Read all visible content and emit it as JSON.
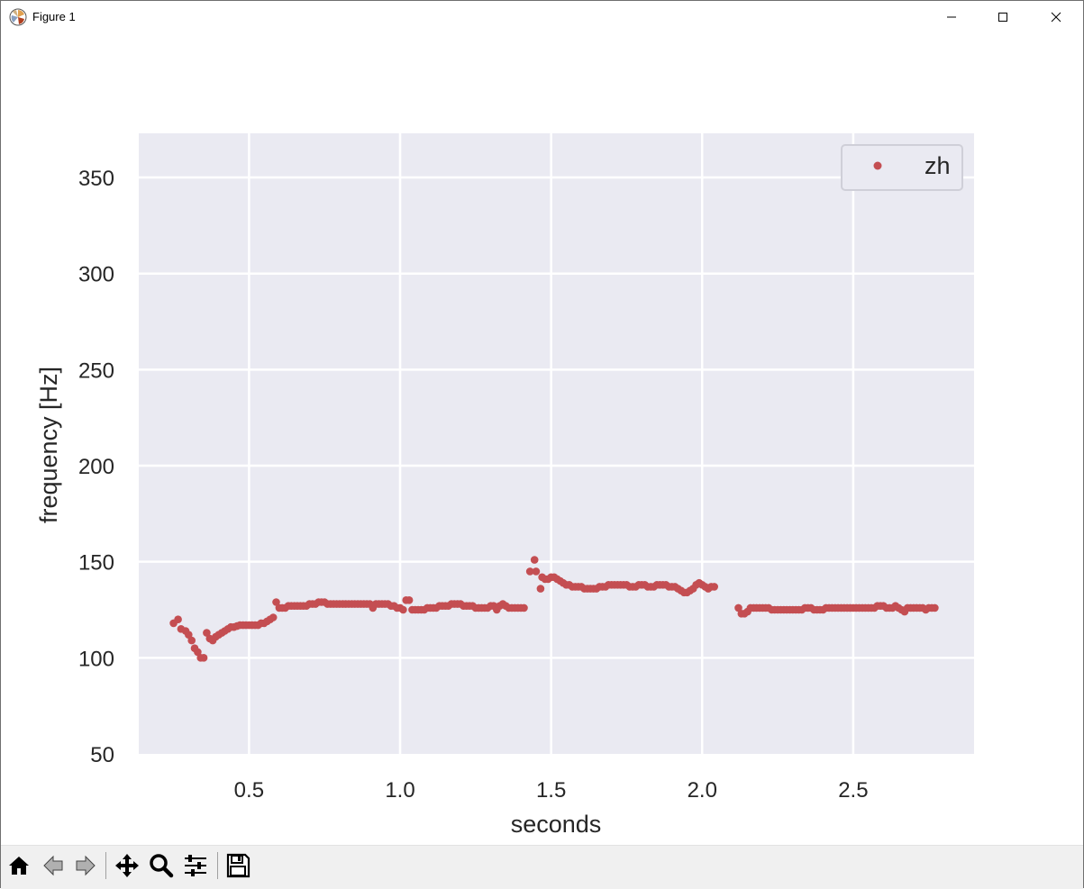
{
  "window": {
    "title": "Figure 1",
    "controls": {
      "minimize": "minimize",
      "maximize": "maximize",
      "close": "close"
    }
  },
  "toolbar": {
    "buttons": [
      {
        "name": "home",
        "icon": "home-icon"
      },
      {
        "name": "back",
        "icon": "back-arrow-icon"
      },
      {
        "name": "forward",
        "icon": "forward-arrow-icon"
      },
      {
        "name": "pan",
        "icon": "move-icon"
      },
      {
        "name": "zoom",
        "icon": "magnifier-icon"
      },
      {
        "name": "configure-subplots",
        "icon": "sliders-icon"
      },
      {
        "name": "save",
        "icon": "floppy-disk-icon"
      }
    ]
  },
  "chart_data": {
    "type": "scatter",
    "title": "",
    "xlabel": "seconds",
    "ylabel": "frequency [Hz]",
    "xlim": [
      0.135,
      2.9
    ],
    "ylim": [
      50,
      373
    ],
    "xticks": [
      0.5,
      1.0,
      1.5,
      2.0,
      2.5
    ],
    "xtick_labels": [
      "0.5",
      "1.0",
      "1.5",
      "2.0",
      "2.5"
    ],
    "yticks": [
      50,
      100,
      150,
      200,
      250,
      300,
      350
    ],
    "ytick_labels": [
      "50",
      "100",
      "150",
      "200",
      "250",
      "300",
      "350"
    ],
    "grid": true,
    "style": "seaborn",
    "background": "#eaeaf2",
    "legend_position": "top-right",
    "series": [
      {
        "name": "zh",
        "color": "#c44e52",
        "points": [
          [
            0.25,
            118
          ],
          [
            0.265,
            120
          ],
          [
            0.275,
            115
          ],
          [
            0.29,
            114
          ],
          [
            0.3,
            112
          ],
          [
            0.31,
            109
          ],
          [
            0.32,
            105
          ],
          [
            0.33,
            103
          ],
          [
            0.34,
            100
          ],
          [
            0.35,
            100
          ],
          [
            0.36,
            113
          ],
          [
            0.37,
            110
          ],
          [
            0.38,
            109
          ],
          [
            0.39,
            111
          ],
          [
            0.4,
            112
          ],
          [
            0.41,
            113
          ],
          [
            0.42,
            114
          ],
          [
            0.43,
            115
          ],
          [
            0.44,
            116
          ],
          [
            0.45,
            116
          ],
          [
            0.46,
            116.5
          ],
          [
            0.47,
            117
          ],
          [
            0.48,
            117
          ],
          [
            0.49,
            117
          ],
          [
            0.5,
            117
          ],
          [
            0.51,
            117
          ],
          [
            0.52,
            117
          ],
          [
            0.53,
            117
          ],
          [
            0.54,
            118
          ],
          [
            0.55,
            118
          ],
          [
            0.56,
            119
          ],
          [
            0.57,
            120
          ],
          [
            0.58,
            121
          ],
          [
            0.59,
            129
          ],
          [
            0.6,
            126
          ],
          [
            0.61,
            126
          ],
          [
            0.62,
            126
          ],
          [
            0.63,
            127
          ],
          [
            0.64,
            127
          ],
          [
            0.65,
            127
          ],
          [
            0.66,
            127
          ],
          [
            0.67,
            127
          ],
          [
            0.68,
            127
          ],
          [
            0.69,
            127
          ],
          [
            0.7,
            128
          ],
          [
            0.71,
            128
          ],
          [
            0.72,
            128
          ],
          [
            0.73,
            129
          ],
          [
            0.74,
            129
          ],
          [
            0.75,
            129
          ],
          [
            0.76,
            128
          ],
          [
            0.77,
            128
          ],
          [
            0.78,
            128
          ],
          [
            0.79,
            128
          ],
          [
            0.8,
            128
          ],
          [
            0.81,
            128
          ],
          [
            0.82,
            128
          ],
          [
            0.83,
            128
          ],
          [
            0.84,
            128
          ],
          [
            0.85,
            128
          ],
          [
            0.86,
            128
          ],
          [
            0.87,
            128
          ],
          [
            0.88,
            128
          ],
          [
            0.89,
            128
          ],
          [
            0.9,
            128
          ],
          [
            0.91,
            126
          ],
          [
            0.92,
            128
          ],
          [
            0.93,
            128
          ],
          [
            0.94,
            128
          ],
          [
            0.95,
            128
          ],
          [
            0.96,
            128
          ],
          [
            0.97,
            127
          ],
          [
            0.98,
            127
          ],
          [
            0.99,
            126
          ],
          [
            1.0,
            126
          ],
          [
            1.01,
            125
          ],
          [
            1.02,
            130
          ],
          [
            1.03,
            130
          ],
          [
            1.04,
            125
          ],
          [
            1.05,
            125
          ],
          [
            1.06,
            125
          ],
          [
            1.07,
            125
          ],
          [
            1.08,
            125
          ],
          [
            1.09,
            126
          ],
          [
            1.1,
            126
          ],
          [
            1.11,
            126
          ],
          [
            1.12,
            126
          ],
          [
            1.13,
            127
          ],
          [
            1.14,
            127
          ],
          [
            1.15,
            127
          ],
          [
            1.16,
            127
          ],
          [
            1.17,
            128
          ],
          [
            1.18,
            128
          ],
          [
            1.19,
            128
          ],
          [
            1.2,
            128
          ],
          [
            1.21,
            127
          ],
          [
            1.22,
            127
          ],
          [
            1.23,
            127
          ],
          [
            1.24,
            127
          ],
          [
            1.25,
            126
          ],
          [
            1.26,
            126
          ],
          [
            1.27,
            126
          ],
          [
            1.28,
            126
          ],
          [
            1.29,
            126
          ],
          [
            1.3,
            127
          ],
          [
            1.31,
            127
          ],
          [
            1.32,
            125
          ],
          [
            1.33,
            127
          ],
          [
            1.34,
            128
          ],
          [
            1.35,
            127
          ],
          [
            1.36,
            126
          ],
          [
            1.37,
            126
          ],
          [
            1.38,
            126
          ],
          [
            1.39,
            126
          ],
          [
            1.4,
            126
          ],
          [
            1.41,
            126
          ],
          [
            1.43,
            145
          ],
          [
            1.445,
            151
          ],
          [
            1.45,
            145
          ],
          [
            1.465,
            136
          ],
          [
            1.47,
            142
          ],
          [
            1.48,
            141
          ],
          [
            1.49,
            141
          ],
          [
            1.5,
            142
          ],
          [
            1.51,
            142
          ],
          [
            1.52,
            141
          ],
          [
            1.53,
            140
          ],
          [
            1.54,
            139
          ],
          [
            1.55,
            138
          ],
          [
            1.56,
            138
          ],
          [
            1.57,
            137
          ],
          [
            1.58,
            137
          ],
          [
            1.59,
            137
          ],
          [
            1.6,
            137
          ],
          [
            1.61,
            136
          ],
          [
            1.62,
            136
          ],
          [
            1.63,
            136
          ],
          [
            1.64,
            136
          ],
          [
            1.65,
            136
          ],
          [
            1.66,
            137
          ],
          [
            1.67,
            137
          ],
          [
            1.68,
            137
          ],
          [
            1.69,
            138
          ],
          [
            1.7,
            138
          ],
          [
            1.71,
            138
          ],
          [
            1.72,
            138
          ],
          [
            1.73,
            138
          ],
          [
            1.74,
            138
          ],
          [
            1.75,
            138
          ],
          [
            1.76,
            137
          ],
          [
            1.77,
            137
          ],
          [
            1.78,
            137
          ],
          [
            1.79,
            138
          ],
          [
            1.8,
            138
          ],
          [
            1.81,
            138
          ],
          [
            1.82,
            137
          ],
          [
            1.83,
            137
          ],
          [
            1.84,
            137
          ],
          [
            1.85,
            138
          ],
          [
            1.86,
            138
          ],
          [
            1.87,
            138
          ],
          [
            1.88,
            138
          ],
          [
            1.89,
            137
          ],
          [
            1.9,
            137
          ],
          [
            1.91,
            137
          ],
          [
            1.92,
            136
          ],
          [
            1.93,
            135
          ],
          [
            1.94,
            134
          ],
          [
            1.95,
            134
          ],
          [
            1.96,
            135
          ],
          [
            1.97,
            136
          ],
          [
            1.98,
            138
          ],
          [
            1.99,
            139
          ],
          [
            2.0,
            138
          ],
          [
            2.01,
            137
          ],
          [
            2.02,
            136
          ],
          [
            2.03,
            137
          ],
          [
            2.04,
            137
          ],
          [
            2.12,
            126
          ],
          [
            2.13,
            123
          ],
          [
            2.14,
            123
          ],
          [
            2.15,
            124
          ],
          [
            2.16,
            126
          ],
          [
            2.17,
            126
          ],
          [
            2.18,
            126
          ],
          [
            2.19,
            126
          ],
          [
            2.2,
            126
          ],
          [
            2.21,
            126
          ],
          [
            2.22,
            126
          ],
          [
            2.23,
            125
          ],
          [
            2.24,
            125
          ],
          [
            2.25,
            125
          ],
          [
            2.26,
            125
          ],
          [
            2.27,
            125
          ],
          [
            2.28,
            125
          ],
          [
            2.29,
            125
          ],
          [
            2.3,
            125
          ],
          [
            2.31,
            125
          ],
          [
            2.32,
            125
          ],
          [
            2.33,
            125
          ],
          [
            2.34,
            126
          ],
          [
            2.35,
            126
          ],
          [
            2.36,
            126
          ],
          [
            2.37,
            125
          ],
          [
            2.38,
            125
          ],
          [
            2.39,
            125
          ],
          [
            2.4,
            125
          ],
          [
            2.41,
            126
          ],
          [
            2.42,
            126
          ],
          [
            2.43,
            126
          ],
          [
            2.44,
            126
          ],
          [
            2.45,
            126
          ],
          [
            2.46,
            126
          ],
          [
            2.47,
            126
          ],
          [
            2.48,
            126
          ],
          [
            2.49,
            126
          ],
          [
            2.5,
            126
          ],
          [
            2.51,
            126
          ],
          [
            2.52,
            126
          ],
          [
            2.53,
            126
          ],
          [
            2.54,
            126
          ],
          [
            2.55,
            126
          ],
          [
            2.56,
            126
          ],
          [
            2.57,
            126
          ],
          [
            2.58,
            127
          ],
          [
            2.59,
            127
          ],
          [
            2.6,
            127
          ],
          [
            2.61,
            126
          ],
          [
            2.62,
            126
          ],
          [
            2.63,
            126
          ],
          [
            2.64,
            127
          ],
          [
            2.65,
            126
          ],
          [
            2.66,
            125
          ],
          [
            2.67,
            124
          ],
          [
            2.68,
            126
          ],
          [
            2.69,
            126
          ],
          [
            2.7,
            126
          ],
          [
            2.71,
            126
          ],
          [
            2.72,
            126
          ],
          [
            2.73,
            126
          ],
          [
            2.74,
            125
          ],
          [
            2.75,
            126
          ],
          [
            2.76,
            126
          ],
          [
            2.77,
            126
          ]
        ]
      }
    ]
  }
}
